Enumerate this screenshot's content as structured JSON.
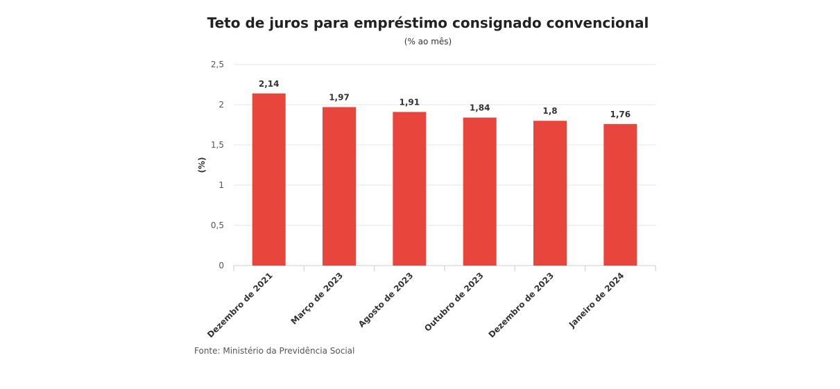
{
  "chart_data": {
    "type": "bar",
    "title": "Teto de juros para empréstimo consignado convencional",
    "subtitle": "(% ao mês)",
    "ylabel": "(%)",
    "xlabel": "",
    "categories": [
      "Dezembro de 2021",
      "Março de 2023",
      "Agosto de 2023",
      "Outubro de 2023",
      "Dezembro de 2023",
      "Janeiro de 2024"
    ],
    "values": [
      2.14,
      1.97,
      1.91,
      1.84,
      1.8,
      1.76
    ],
    "value_labels": [
      "2,14",
      "1,97",
      "1,91",
      "1,84",
      "1,8",
      "1,76"
    ],
    "ylim": [
      0,
      2.5
    ],
    "yticks": [
      0,
      0.5,
      1,
      1.5,
      2,
      2.5
    ],
    "ytick_labels": [
      "0",
      "0,5",
      "1",
      "1,5",
      "2",
      "2,5"
    ],
    "grid": true,
    "bar_color": "#e8453c",
    "source": "Fonte: Ministério da Previdência Social"
  }
}
